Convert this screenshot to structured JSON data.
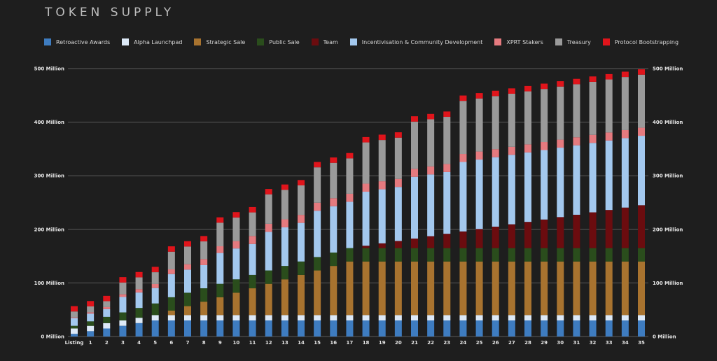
{
  "chart_data": {
    "type": "bar",
    "stacked": true,
    "title": "TOKEN SUPPLY",
    "xlabel": "",
    "ylabel": "",
    "ylim": [
      0,
      500
    ],
    "yticks": [
      "0 Million",
      "100 Million",
      "200 Million",
      "300 Million",
      "400 Million",
      "500 Million"
    ],
    "ytick_values": [
      0,
      100,
      200,
      300,
      400,
      500
    ],
    "grid": true,
    "legend": "top",
    "axes": "left and right",
    "categories": [
      "Listing",
      "1",
      "2",
      "3",
      "4",
      "5",
      "6",
      "7",
      "8",
      "9",
      "10",
      "11",
      "12",
      "13",
      "14",
      "15",
      "16",
      "17",
      "18",
      "19",
      "20",
      "21",
      "22",
      "23",
      "24",
      "25",
      "26",
      "27",
      "28",
      "29",
      "30",
      "31",
      "32",
      "33",
      "34",
      "35"
    ],
    "series": [
      {
        "name": "Retroactive Awards",
        "color": "#3e7cc0",
        "values": [
          5,
          10,
          15,
          20,
          25,
          30,
          30,
          30,
          30,
          30,
          30,
          30,
          30,
          30,
          30,
          30,
          30,
          30,
          30,
          30,
          30,
          30,
          30,
          30,
          30,
          30,
          30,
          30,
          30,
          30,
          30,
          30,
          30,
          30,
          30,
          30
        ]
      },
      {
        "name": "Alpha Launchpad",
        "color": "#dde9f7",
        "values": [
          10,
          10,
          10,
          10,
          10,
          10,
          10,
          10,
          10,
          10,
          10,
          10,
          10,
          10,
          10,
          10,
          10,
          10,
          10,
          10,
          10,
          10,
          10,
          10,
          10,
          10,
          10,
          10,
          10,
          10,
          10,
          10,
          10,
          10,
          10,
          10
        ]
      },
      {
        "name": "Strategic Sale",
        "color": "#a8732f",
        "values": [
          0,
          0,
          0,
          0,
          0,
          0,
          8.3,
          16.7,
          25,
          33.3,
          41.7,
          50,
          58.3,
          66.7,
          75,
          83.3,
          91.7,
          100,
          100,
          100,
          100,
          100,
          100,
          100,
          100,
          100,
          100,
          100,
          100,
          100,
          100,
          100,
          100,
          100,
          100,
          100
        ]
      },
      {
        "name": "Public Sale",
        "color": "#2a4d1c",
        "values": [
          5,
          8.3,
          11.7,
          15,
          18.3,
          21.7,
          25,
          25,
          25,
          25,
          25,
          25,
          25,
          25,
          25,
          25,
          25,
          25,
          25,
          25,
          25,
          25,
          25,
          25,
          25,
          25,
          25,
          25,
          25,
          25,
          25,
          25,
          25,
          25,
          25,
          25
        ]
      },
      {
        "name": "Team",
        "color": "#6b0c0f",
        "values": [
          0,
          0,
          0,
          0,
          0,
          0,
          0,
          0,
          0,
          0,
          0,
          0,
          0,
          0,
          0,
          0,
          0,
          0,
          4.4,
          8.9,
          13.3,
          17.8,
          22.2,
          26.7,
          31.1,
          35.6,
          40,
          44.4,
          48.9,
          53.3,
          57.8,
          62.2,
          66.7,
          71.1,
          75.6,
          80
        ]
      },
      {
        "name": "Incentivisation & Community Development",
        "color": "#a3c8ee",
        "values": [
          14.4,
          14.4,
          14.4,
          28.8,
          28.8,
          28.8,
          43.2,
          43.2,
          43.2,
          57.6,
          57.6,
          57.6,
          72,
          72,
          72,
          86.4,
          86.4,
          86.4,
          100.8,
          100.8,
          100.8,
          115.2,
          115.2,
          115.2,
          129.6,
          129.6,
          129.6,
          129.6,
          129.6,
          129.6,
          129.6,
          129.6,
          129.6,
          129.6,
          129.6,
          129.6
        ]
      },
      {
        "name": "XPRT Stakers",
        "color": "#e57a7f",
        "values": [
          1.3,
          2.5,
          3.8,
          5,
          6.3,
          7.5,
          8.8,
          10,
          11.3,
          12.5,
          13.8,
          15,
          15,
          15,
          15,
          15,
          15,
          15,
          15,
          15,
          15,
          15,
          15,
          15,
          15,
          15,
          15,
          15,
          15,
          15,
          15,
          15,
          15,
          15,
          15,
          15
        ]
      },
      {
        "name": "Treasury",
        "color": "#9a9a9a",
        "values": [
          11,
          11,
          11,
          22,
          22,
          22,
          33,
          33,
          33,
          44,
          44,
          44,
          55,
          55,
          55,
          66,
          66,
          66,
          77,
          77,
          77,
          88,
          88,
          88,
          99,
          99,
          99,
          99,
          99,
          99,
          99,
          99,
          99,
          99,
          99,
          99
        ]
      },
      {
        "name": "Protocol Bootstrapping",
        "color": "#e0141b",
        "values": [
          10,
          10,
          10,
          10,
          10,
          10,
          10,
          10,
          10,
          10,
          10,
          10,
          10,
          10,
          10,
          10,
          10,
          10,
          10,
          10,
          10,
          10,
          10,
          10,
          10,
          10,
          10,
          10,
          10,
          10,
          10,
          10,
          10,
          10,
          10,
          10
        ]
      }
    ]
  }
}
